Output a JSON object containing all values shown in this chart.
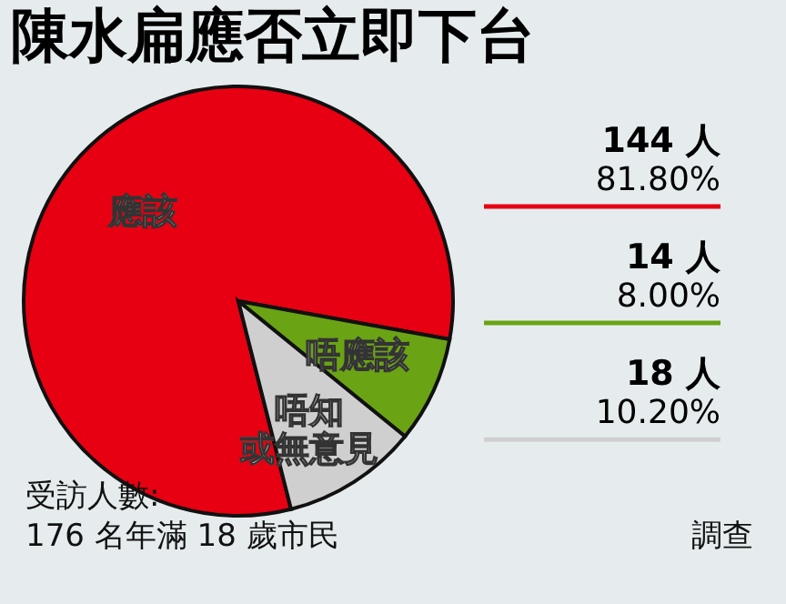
{
  "chart_data": {
    "type": "pie",
    "title": "陳水扁應否立即下台",
    "categories": [
      "應該",
      "唔應該",
      "唔知或無意見"
    ],
    "values": [
      81.8,
      8.0,
      10.2
    ],
    "colors": [
      "#e60012",
      "#6aa314",
      "#cfcfcf"
    ],
    "value_labels": [
      "144 人\n81.80%",
      "14 人\n8.00%",
      "18 人\n10.20%"
    ],
    "annotations": [
      "受訪人數:",
      "176 名年滿 18 歲市民",
      "調查"
    ],
    "legend": false
  }
}
